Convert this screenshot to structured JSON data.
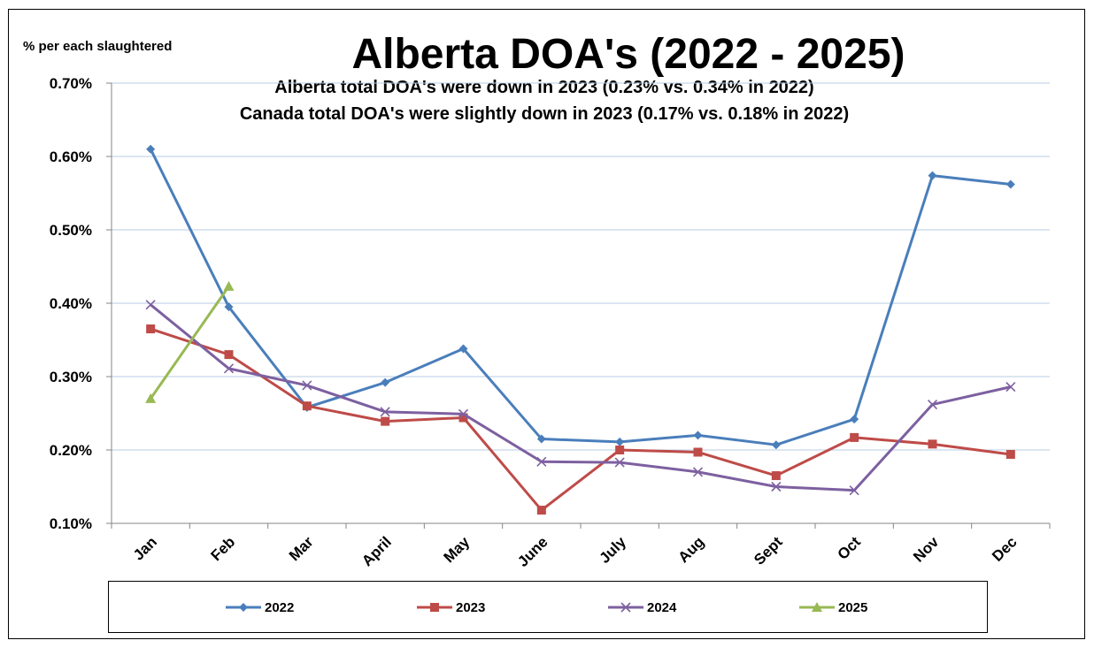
{
  "chart_data": {
    "type": "line",
    "title": "Alberta DOA's (2022 - 2025)",
    "subtitle_lines": [
      "Alberta total DOA's were down in 2023 (0.23%  vs. 0.34% in 2022)",
      "Canada total DOA's were slightly down in 2023 (0.17% vs. 0.18% in 2022)"
    ],
    "ylabel": "% per each slaughtered",
    "xlabel": "",
    "categories": [
      "Jan",
      "Feb",
      "Mar",
      "April",
      "May",
      "June",
      "July",
      "Aug",
      "Sept",
      "Oct",
      "Nov",
      "Dec"
    ],
    "ylim": [
      0.1,
      0.7
    ],
    "yticks": [
      "0.10%",
      "0.20%",
      "0.30%",
      "0.40%",
      "0.50%",
      "0.60%",
      "0.70%"
    ],
    "ytick_values": [
      0.1,
      0.2,
      0.3,
      0.4,
      0.5,
      0.6,
      0.7
    ],
    "grid": "horizontal",
    "legend_position": "bottom",
    "series": [
      {
        "name": "2022",
        "color": "#4a7ebb",
        "marker": "diamond",
        "values": [
          0.61,
          0.395,
          0.258,
          0.292,
          0.338,
          0.215,
          0.211,
          0.22,
          0.207,
          0.242,
          0.574,
          0.562
        ]
      },
      {
        "name": "2023",
        "color": "#be4b48",
        "marker": "square",
        "values": [
          0.365,
          0.33,
          0.26,
          0.239,
          0.244,
          0.118,
          0.2,
          0.197,
          0.165,
          0.217,
          0.208,
          0.194
        ]
      },
      {
        "name": "2024",
        "color": "#7d60a0",
        "marker": "x",
        "values": [
          0.398,
          0.311,
          0.288,
          0.252,
          0.249,
          0.184,
          0.183,
          0.17,
          0.15,
          0.145,
          0.262,
          0.286
        ]
      },
      {
        "name": "2025",
        "color": "#98b954",
        "marker": "triangle",
        "values": [
          0.27,
          0.423,
          null,
          null,
          null,
          null,
          null,
          null,
          null,
          null,
          null,
          null
        ]
      }
    ]
  }
}
